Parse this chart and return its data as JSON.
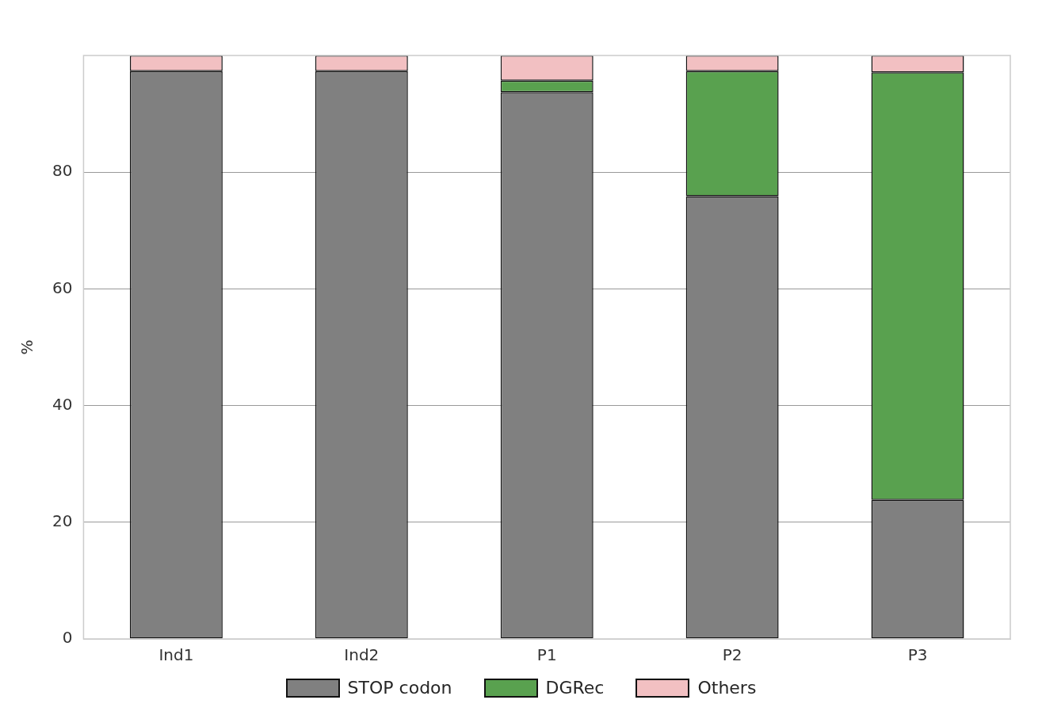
{
  "chart_data": {
    "type": "bar",
    "stacked": true,
    "ylabel": "%",
    "categories": [
      "Ind1",
      "Ind2",
      "P1",
      "P2",
      "P3"
    ],
    "series": [
      {
        "name": "STOP codon",
        "color": "#808080",
        "values": [
          97.3,
          97.3,
          93.7,
          75.9,
          23.8
        ]
      },
      {
        "name": "DGRec",
        "color": "#59a14f",
        "values": [
          0,
          0,
          2.0,
          21.4,
          73.3
        ]
      },
      {
        "name": "Others",
        "color": "#f2c0c2",
        "values": [
          2.7,
          2.7,
          4.3,
          2.7,
          2.9
        ]
      }
    ],
    "ylim": [
      0,
      100
    ],
    "yticks": [
      0,
      20,
      40,
      60,
      80
    ],
    "grid": "y",
    "legend": "bottom"
  }
}
